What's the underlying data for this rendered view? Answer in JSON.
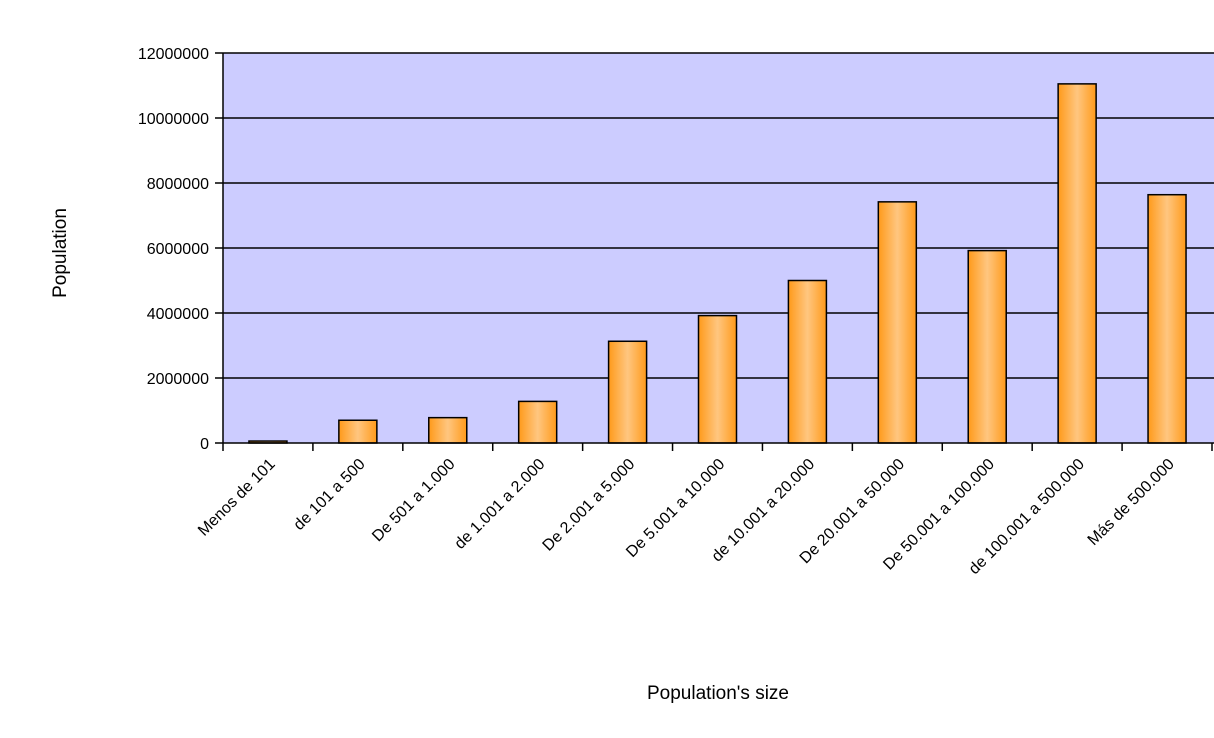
{
  "chart_data": {
    "type": "bar",
    "title": "",
    "xlabel": "Population's size",
    "ylabel": "Population",
    "ylim": [
      0,
      12000000
    ],
    "yticks": [
      0,
      2000000,
      4000000,
      6000000,
      8000000,
      10000000,
      12000000
    ],
    "grid": true,
    "categories": [
      "Menos de 101",
      "de 101 a 500",
      "De 501 a 1.000",
      "de 1.001 a 2.000",
      "De 2.001 a 5.000",
      "De 5.001 a 10.000",
      "de 10.001 a 20.000",
      "De 20.001 a 50.000",
      "De 50.001 a 100.000",
      "de 100.001 a 500.000",
      "Más de 500.000"
    ],
    "values": [
      60000,
      700000,
      780000,
      1280000,
      3130000,
      3920000,
      5000000,
      7420000,
      5920000,
      11050000,
      7640000
    ],
    "colors": {
      "plot_background": "#ccccff",
      "bar_fill": "#ffa533",
      "bar_stroke": "#000000",
      "gridline": "#000000"
    }
  }
}
